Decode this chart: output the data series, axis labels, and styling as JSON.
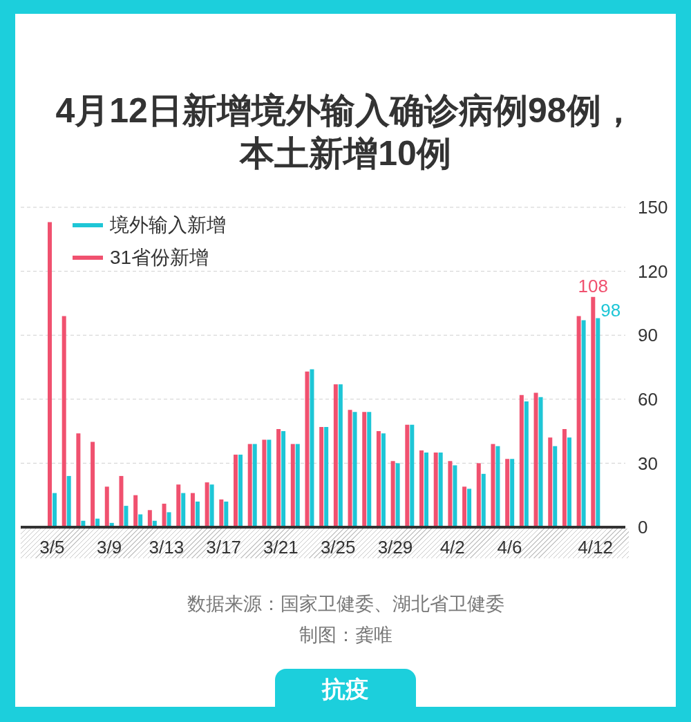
{
  "chart_data": {
    "type": "bar",
    "title": "4月12日新增境外输入确诊病例98例，本土新增10例",
    "categories": [
      "3/5",
      null,
      null,
      null,
      "3/9",
      null,
      null,
      null,
      "3/13",
      null,
      null,
      null,
      "3/17",
      null,
      null,
      null,
      "3/21",
      null,
      null,
      null,
      "3/25",
      null,
      null,
      null,
      "3/29",
      null,
      null,
      null,
      "4/2",
      null,
      null,
      null,
      "4/6",
      null,
      null,
      null,
      null,
      null,
      "4/12"
    ],
    "series": [
      {
        "name": "境外输入新增",
        "color": "#1ec6d6",
        "values": [
          16,
          24,
          3,
          4,
          2,
          10,
          6,
          3,
          7,
          16,
          12,
          20,
          12,
          34,
          39,
          41,
          45,
          39,
          74,
          47,
          67,
          54,
          54,
          44,
          30,
          48,
          35,
          35,
          29,
          18,
          25,
          38,
          32,
          59,
          61,
          38,
          42,
          97,
          98
        ],
        "value_labels": [
          null,
          null,
          null,
          null,
          null,
          null,
          null,
          null,
          null,
          null,
          null,
          null,
          null,
          null,
          null,
          null,
          null,
          null,
          null,
          null,
          null,
          null,
          null,
          null,
          null,
          null,
          null,
          null,
          null,
          null,
          null,
          null,
          null,
          null,
          null,
          null,
          null,
          null,
          "98"
        ]
      },
      {
        "name": "31省份新增",
        "color": "#f0516f",
        "values": [
          143,
          99,
          44,
          40,
          19,
          24,
          15,
          8,
          11,
          20,
          16,
          21,
          13,
          34,
          39,
          41,
          46,
          39,
          73,
          47,
          67,
          55,
          54,
          45,
          31,
          48,
          36,
          35,
          31,
          19,
          30,
          39,
          32,
          62,
          63,
          42,
          46,
          99,
          108
        ],
        "value_labels": [
          null,
          null,
          null,
          null,
          null,
          null,
          null,
          null,
          null,
          null,
          null,
          null,
          null,
          null,
          null,
          null,
          null,
          null,
          null,
          null,
          null,
          null,
          null,
          null,
          null,
          null,
          null,
          null,
          null,
          null,
          null,
          null,
          null,
          null,
          null,
          null,
          null,
          null,
          "108"
        ]
      }
    ],
    "ylim": [
      0,
      150
    ],
    "yticks": [
      0,
      30,
      60,
      90,
      120,
      150
    ],
    "grid": "y",
    "legend": "top left",
    "annotations": [
      "数据来源：国家卫健委、湖北省卫健委",
      "制图：龚唯",
      "抗疫"
    ]
  }
}
